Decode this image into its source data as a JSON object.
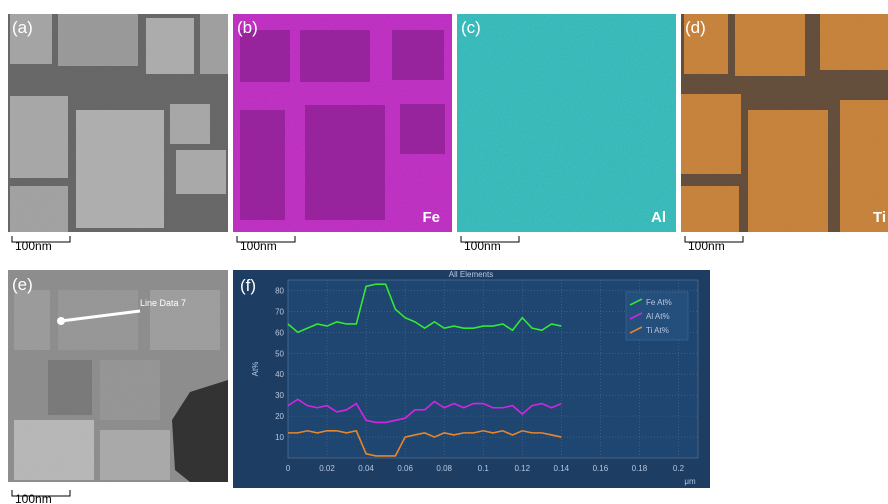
{
  "panels": [
    {
      "label": "(a)",
      "scale_bar": "100nm"
    },
    {
      "label": "(b)",
      "scale_bar": "100nm",
      "element": "Fe"
    },
    {
      "label": "(c)",
      "scale_bar": "100nm",
      "element": "Al"
    },
    {
      "label": "(d)",
      "scale_bar": "100nm",
      "element": "Ti"
    },
    {
      "label": "(e)",
      "scale_bar": "100nm",
      "annotation": "Line Data 7"
    },
    {
      "label": "(f)"
    }
  ],
  "chart_data": {
    "type": "line",
    "title": "All Elements",
    "y_label": "At%",
    "x_label": "μm",
    "x": [
      0,
      0.005,
      0.01,
      0.015,
      0.02,
      0.025,
      0.03,
      0.035,
      0.04,
      0.045,
      0.05,
      0.055,
      0.06,
      0.065,
      0.07,
      0.075,
      0.08,
      0.085,
      0.09,
      0.095,
      0.1,
      0.105,
      0.11,
      0.115,
      0.12,
      0.125,
      0.13,
      0.135,
      0.14
    ],
    "series": [
      {
        "name": "Fe At%",
        "color": "#33e833",
        "values": [
          64,
          60,
          62,
          64,
          63,
          65,
          64,
          64,
          82,
          83,
          83,
          71,
          67,
          65,
          62,
          65,
          62,
          63,
          62,
          62,
          63,
          63,
          64,
          61,
          67,
          62,
          61,
          64,
          63
        ]
      },
      {
        "name": "Al At%",
        "color": "#d424e4",
        "values": [
          25,
          28,
          25,
          24,
          25,
          22,
          23,
          26,
          18,
          17,
          17,
          18,
          19,
          23,
          23,
          27,
          24,
          26,
          24,
          26,
          26,
          24,
          24,
          25,
          21,
          25,
          26,
          24,
          26
        ]
      },
      {
        "name": "Ti At%",
        "color": "#e8862a",
        "values": [
          12,
          12,
          13,
          12,
          13,
          13,
          12,
          13,
          2,
          1,
          1,
          1,
          10,
          11,
          12,
          10,
          12,
          11,
          12,
          12,
          13,
          12,
          13,
          11,
          13,
          12,
          12,
          11,
          10
        ]
      }
    ],
    "xlim": [
      0,
      0.21
    ],
    "ylim": [
      0,
      85
    ],
    "xticks": [
      0,
      0.02,
      0.04,
      0.06,
      0.08,
      0.1,
      0.12,
      0.14,
      0.16,
      0.18,
      0.2
    ],
    "yticks": [
      10,
      20,
      30,
      40,
      50,
      60,
      70,
      80
    ],
    "grid": true,
    "legend": "upper right"
  }
}
